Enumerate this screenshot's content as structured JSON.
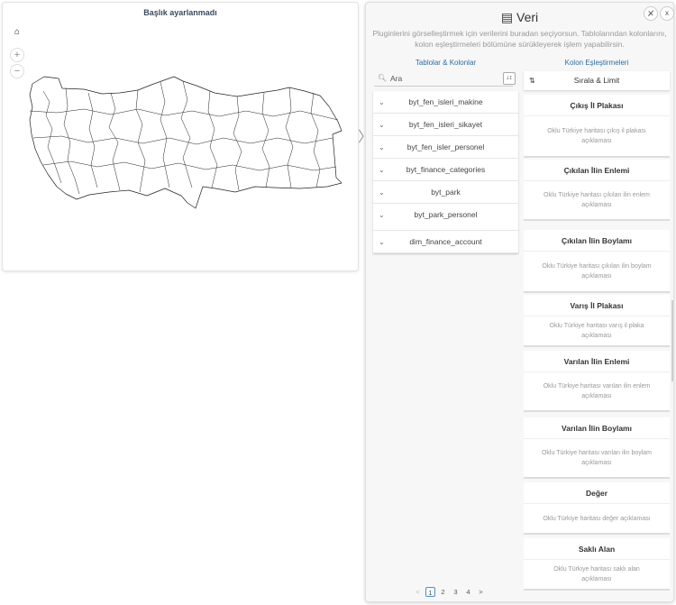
{
  "map": {
    "title": "Başlık ayarlanmadı",
    "home_icon": "home-icon",
    "zoom_in": "+",
    "zoom_out": "−"
  },
  "panel": {
    "title": "Veri",
    "title_icon": "table-icon",
    "close_label": "x",
    "description": "Pluginlerini görselleştirmek için verilerini buradan seçiyorsun. Tablolarından kolonlarını, kolon eşleştirmeleri bölümüne sürükleyerek işlem yapabilirsin.",
    "tables_header": "Tablolar & Kolonlar",
    "mappings_header": "Kolon Eşleştirmeleri",
    "search_placeholder": "Ara",
    "sort_limit": "Sırala & Limit",
    "tables": [
      "byt_fen_isleri_makine",
      "byt_fen_isleri_sikayet",
      "byt_fen_isler_personel",
      "byt_finance_categories",
      "byt_park",
      "byt_park_personel",
      "dim_finance_account"
    ],
    "mappings": [
      {
        "title": "Çıkış İl Plakası",
        "desc": "Oklu Türkiye haritası çıkış il plakası açıklaması"
      },
      {
        "title": "Çıkılan İlin Enlemi",
        "desc": "Oklu Türkiye haritası çıkılan ilin enlem açıklaması"
      },
      {
        "title": "Çıkılan İlin Boylamı",
        "desc": "Oklu Türkiye haritası çıkılan ilin boylam açıklaması"
      },
      {
        "title": "Varış İl Plakası",
        "desc": "Oklu Türkiye haritası varış il plaka açıklaması"
      },
      {
        "title": "Varılan İlin Enlemi",
        "desc": "Oklu Türkiye haritası varılan ilin enlem açıklaması"
      },
      {
        "title": "Varılan İlin Boylamı",
        "desc": "Oklu Türkiye haritası varılan ilin boylam açıklaması"
      },
      {
        "title": "Değer",
        "desc": "Oklu Türkiye haritası değer açıklaması"
      },
      {
        "title": "Saklı Alan",
        "desc": "Oklu Türkiye haritası saklı alan açıklaması"
      }
    ],
    "pagination": {
      "prev": "<",
      "pages": [
        "1",
        "2",
        "3",
        "4"
      ],
      "current": "1",
      "next": ">"
    }
  }
}
